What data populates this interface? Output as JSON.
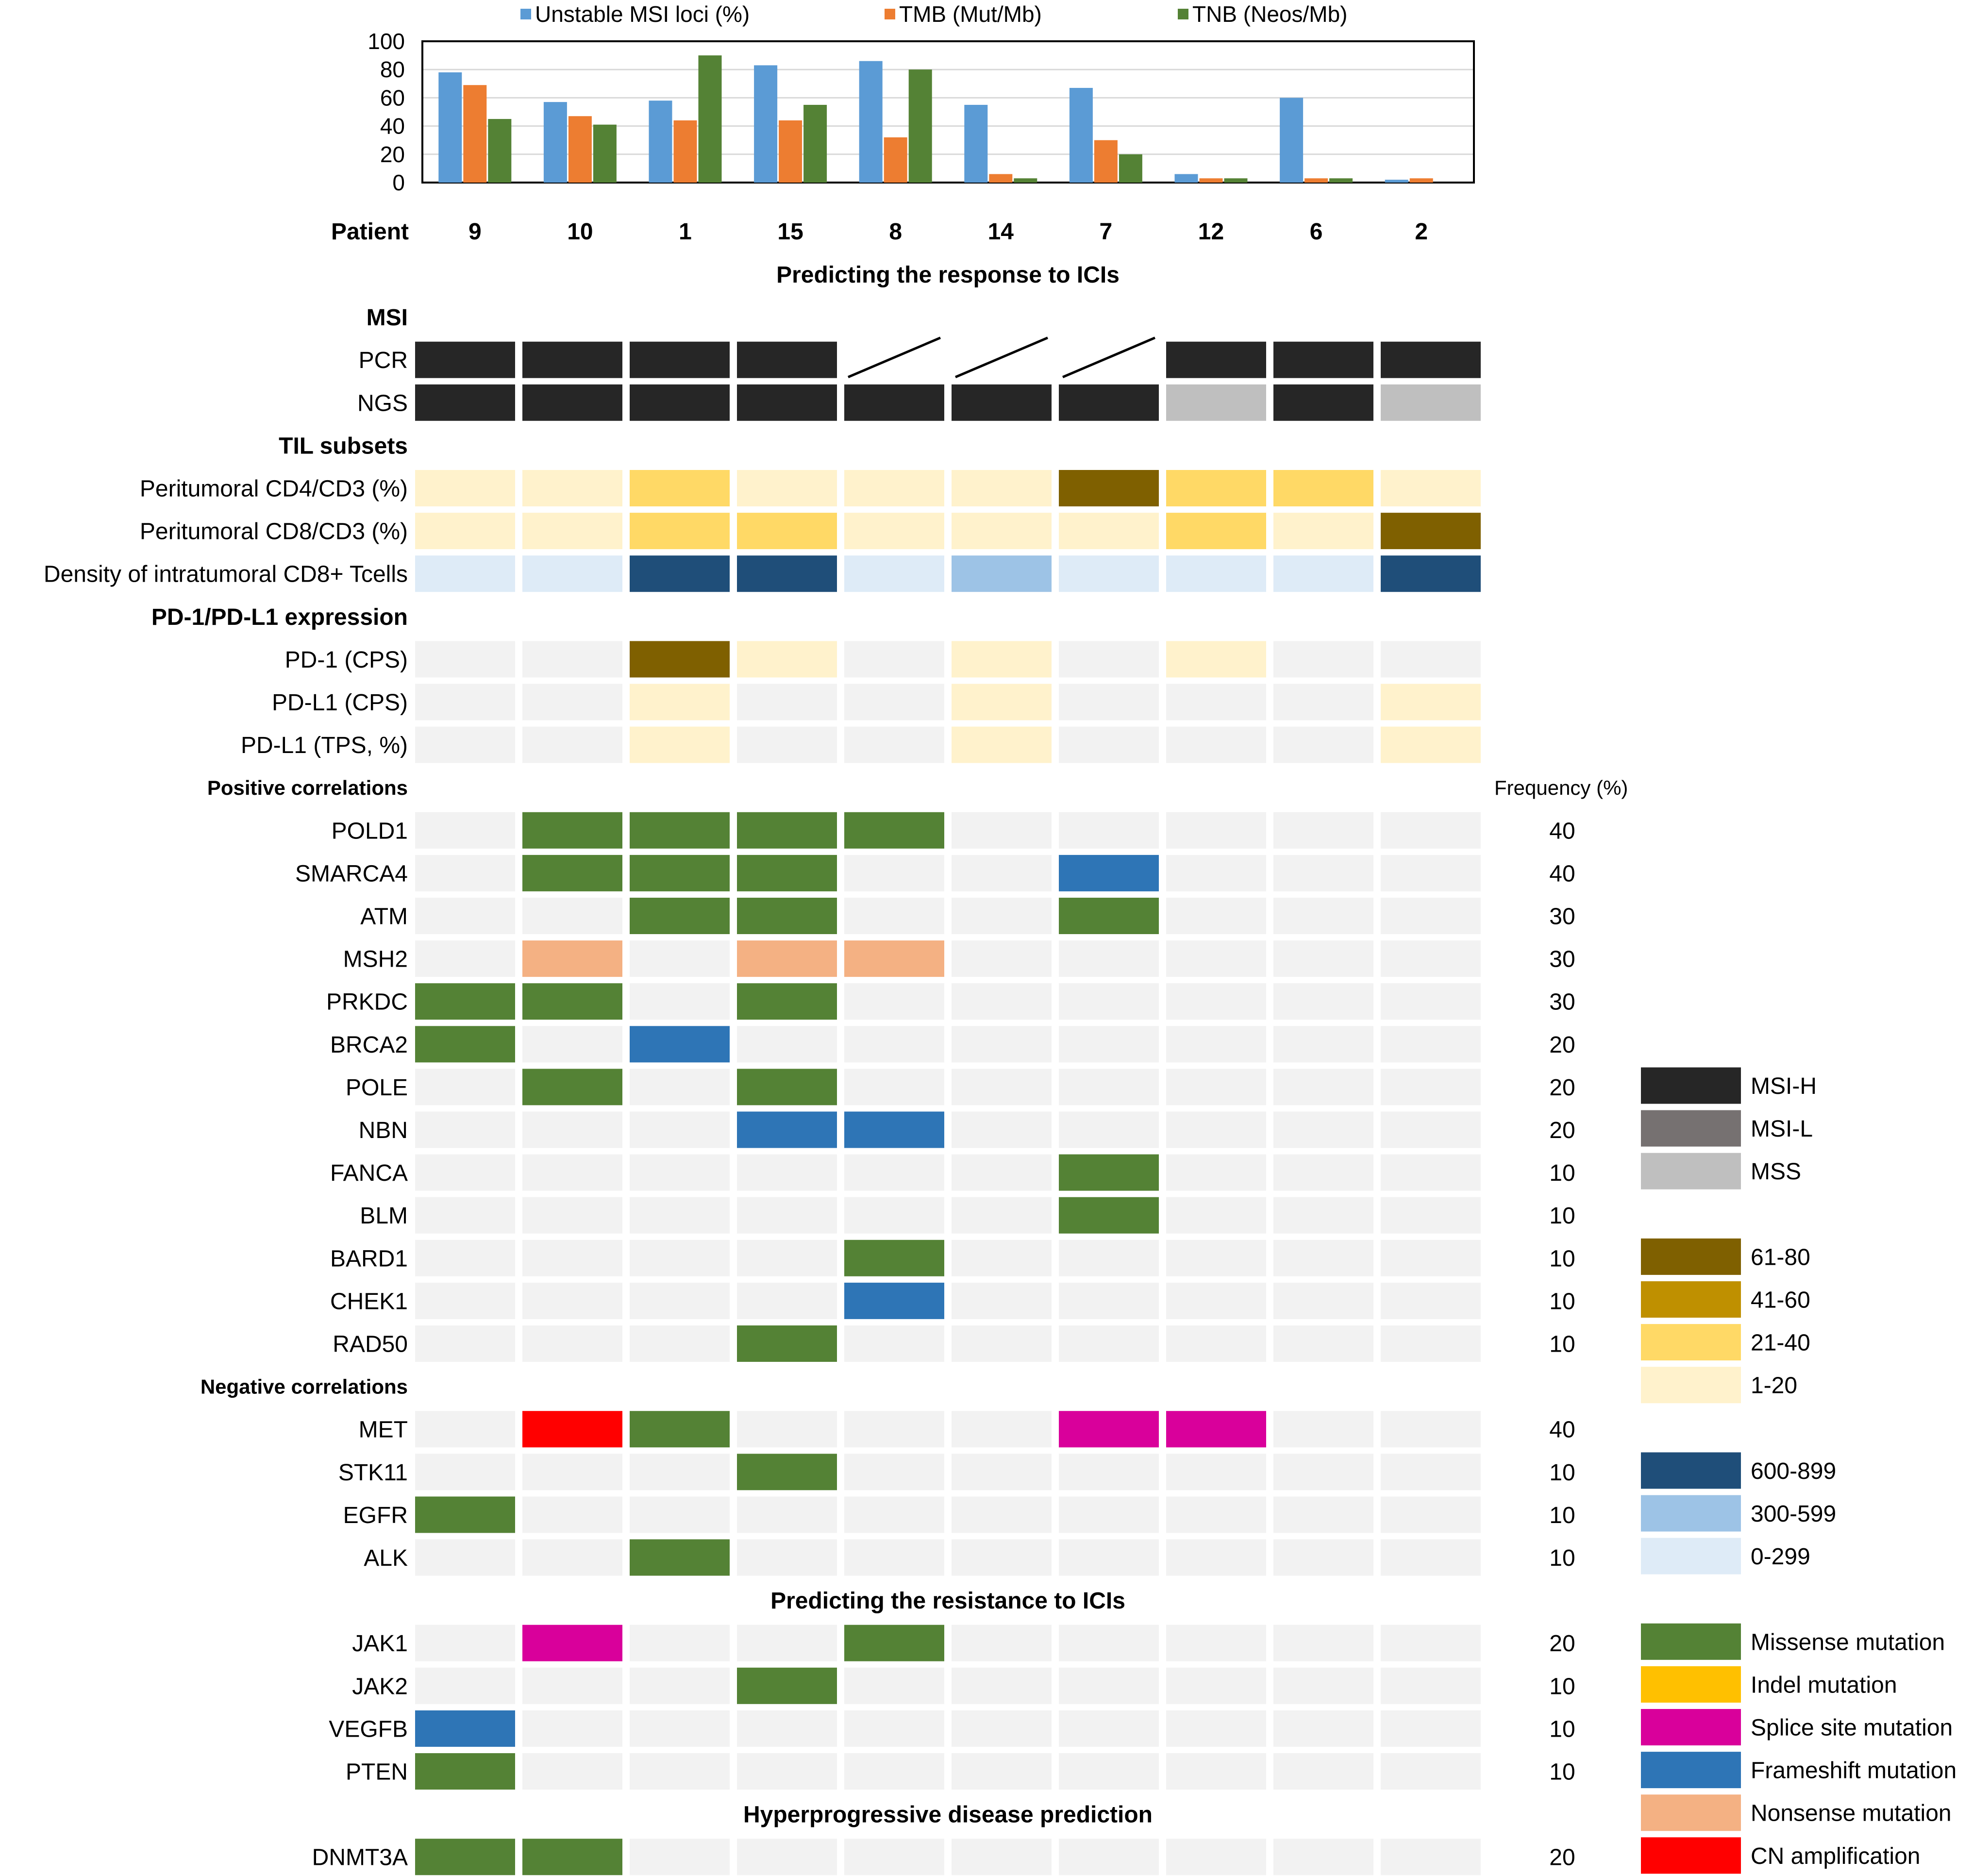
{
  "chart_data": {
    "type": "bar",
    "legend": [
      {
        "label": "Unstable MSI loci (%)",
        "color": "#5b9bd5"
      },
      {
        "label": "TMB (Mut/Mb)",
        "color": "#ed7d31"
      },
      {
        "label": "TNB (Neos/Mb)",
        "color": "#548235"
      }
    ],
    "ylim": [
      0,
      100
    ],
    "yticks": [
      "0",
      "20",
      "40",
      "60",
      "80",
      "100"
    ],
    "xlabel": "Patient",
    "categories": [
      "9",
      "10",
      "1",
      "15",
      "8",
      "14",
      "7",
      "12",
      "6",
      "2"
    ],
    "series": [
      {
        "name": "Unstable MSI loci (%)",
        "values": [
          78,
          57,
          58,
          83,
          86,
          55,
          67,
          6,
          60,
          2
        ]
      },
      {
        "name": "TMB (Mut/Mb)",
        "values": [
          69,
          47,
          44,
          44,
          32,
          6,
          30,
          3,
          3,
          3
        ]
      },
      {
        "name": "TNB (Neos/Mb)",
        "values": [
          45,
          41,
          90,
          55,
          80,
          3,
          20,
          3,
          3,
          0
        ]
      }
    ]
  },
  "colors": {
    "msi_h": "#262626",
    "msi_l": "#767171",
    "mss": "#bfbfbf",
    "y61_80": "#7f6000",
    "y41_60": "#bf9000",
    "y21_40": "#ffd966",
    "y1_20": "#fff2cc",
    "b600_899": "#1f4e79",
    "b300_599": "#9dc3e6",
    "b0_299": "#deebf7",
    "missense": "#548235",
    "indel": "#ffc000",
    "splice": "#d9009b",
    "frameshift": "#2e75b6",
    "nonsense": "#f4b183",
    "cnamp": "#ff0000",
    "empty": "#f2f2f2"
  },
  "heatmap": {
    "frequency_header": "Frequency (%)",
    "sections": [
      {
        "title": "Predicting the response to ICIs",
        "style": "title"
      },
      {
        "title": "MSI",
        "style": "bold"
      },
      {
        "label": "PCR",
        "cells": [
          "msi_h",
          "msi_h",
          "msi_h",
          "msi_h",
          "na",
          "na",
          "na",
          "msi_h",
          "msi_h",
          "msi_h"
        ]
      },
      {
        "label": "NGS",
        "cells": [
          "msi_h",
          "msi_h",
          "msi_h",
          "msi_h",
          "msi_h",
          "msi_h",
          "msi_h",
          "mss",
          "msi_h",
          "mss"
        ]
      },
      {
        "title": "TIL subsets",
        "style": "bold"
      },
      {
        "label": "Peritumoral CD4/CD3 (%)",
        "cells": [
          "y1_20",
          "y1_20",
          "y21_40",
          "y1_20",
          "y1_20",
          "y1_20",
          "y61_80",
          "y21_40",
          "y21_40",
          "y1_20"
        ]
      },
      {
        "label": "Peritumoral CD8/CD3 (%)",
        "cells": [
          "y1_20",
          "y1_20",
          "y21_40",
          "y21_40",
          "y1_20",
          "y1_20",
          "y1_20",
          "y21_40",
          "y1_20",
          "y61_80"
        ]
      },
      {
        "label": "Density of intratumoral CD8+ Tcells",
        "cells": [
          "b0_299",
          "b0_299",
          "b600_899",
          "b600_899",
          "b0_299",
          "b300_599",
          "b0_299",
          "b0_299",
          "b0_299",
          "b600_899"
        ]
      },
      {
        "title": "PD-1/PD-L1 expression",
        "style": "bold"
      },
      {
        "label": "PD-1 (CPS)",
        "cells": [
          "empty",
          "empty",
          "y61_80",
          "y1_20",
          "empty",
          "y1_20",
          "empty",
          "y1_20",
          "empty",
          "empty"
        ]
      },
      {
        "label": "PD-L1 (CPS)",
        "cells": [
          "empty",
          "empty",
          "y1_20",
          "empty",
          "empty",
          "y1_20",
          "empty",
          "empty",
          "empty",
          "y1_20"
        ]
      },
      {
        "label": "PD-L1 (TPS, %)",
        "cells": [
          "empty",
          "empty",
          "y1_20",
          "empty",
          "empty",
          "y1_20",
          "empty",
          "empty",
          "empty",
          "y1_20"
        ]
      },
      {
        "title": "Positive correlations",
        "style": "small"
      },
      {
        "label": "POLD1",
        "freq": "40",
        "cells": [
          "empty",
          "missense",
          "missense",
          "missense",
          "missense",
          "empty",
          "empty",
          "empty",
          "empty",
          "empty"
        ]
      },
      {
        "label": "SMARCA4",
        "freq": "40",
        "cells": [
          "empty",
          "missense",
          "missense",
          "missense",
          "empty",
          "empty",
          "frameshift",
          "empty",
          "empty",
          "empty"
        ]
      },
      {
        "label": "ATM",
        "freq": "30",
        "cells": [
          "empty",
          "empty",
          "missense",
          "missense",
          "empty",
          "empty",
          "missense",
          "empty",
          "empty",
          "empty"
        ]
      },
      {
        "label": "MSH2",
        "freq": "30",
        "cells": [
          "empty",
          "nonsense",
          "empty",
          "nonsense",
          "nonsense",
          "empty",
          "empty",
          "empty",
          "empty",
          "empty"
        ]
      },
      {
        "label": "PRKDC",
        "freq": "30",
        "cells": [
          "missense",
          "missense",
          "empty",
          "missense",
          "empty",
          "empty",
          "empty",
          "empty",
          "empty",
          "empty"
        ]
      },
      {
        "label": "BRCA2",
        "freq": "20",
        "cells": [
          "missense",
          "empty",
          "frameshift",
          "empty",
          "empty",
          "empty",
          "empty",
          "empty",
          "empty",
          "empty"
        ]
      },
      {
        "label": "POLE",
        "freq": "20",
        "cells": [
          "empty",
          "missense",
          "empty",
          "missense",
          "empty",
          "empty",
          "empty",
          "empty",
          "empty",
          "empty"
        ]
      },
      {
        "label": "NBN",
        "freq": "20",
        "cells": [
          "empty",
          "empty",
          "empty",
          "frameshift",
          "frameshift",
          "empty",
          "empty",
          "empty",
          "empty",
          "empty"
        ]
      },
      {
        "label": "FANCA",
        "freq": "10",
        "cells": [
          "empty",
          "empty",
          "empty",
          "empty",
          "empty",
          "empty",
          "missense",
          "empty",
          "empty",
          "empty"
        ]
      },
      {
        "label": "BLM",
        "freq": "10",
        "cells": [
          "empty",
          "empty",
          "empty",
          "empty",
          "empty",
          "empty",
          "missense",
          "empty",
          "empty",
          "empty"
        ]
      },
      {
        "label": "BARD1",
        "freq": "10",
        "cells": [
          "empty",
          "empty",
          "empty",
          "empty",
          "missense",
          "empty",
          "empty",
          "empty",
          "empty",
          "empty"
        ]
      },
      {
        "label": "CHEK1",
        "freq": "10",
        "cells": [
          "empty",
          "empty",
          "empty",
          "empty",
          "frameshift",
          "empty",
          "empty",
          "empty",
          "empty",
          "empty"
        ]
      },
      {
        "label": "RAD50",
        "freq": "10",
        "cells": [
          "empty",
          "empty",
          "empty",
          "missense",
          "empty",
          "empty",
          "empty",
          "empty",
          "empty",
          "empty"
        ]
      },
      {
        "title": "Negative correlations",
        "style": "small"
      },
      {
        "label": "MET",
        "freq": "40",
        "cells": [
          "empty",
          "cnamp",
          "missense",
          "empty",
          "empty",
          "empty",
          "splice",
          "splice",
          "empty",
          "empty"
        ]
      },
      {
        "label": "STK11",
        "freq": "10",
        "cells": [
          "empty",
          "empty",
          "empty",
          "missense",
          "empty",
          "empty",
          "empty",
          "empty",
          "empty",
          "empty"
        ]
      },
      {
        "label": "EGFR",
        "freq": "10",
        "cells": [
          "missense",
          "empty",
          "empty",
          "empty",
          "empty",
          "empty",
          "empty",
          "empty",
          "empty",
          "empty"
        ]
      },
      {
        "label": "ALK",
        "freq": "10",
        "cells": [
          "empty",
          "empty",
          "missense",
          "empty",
          "empty",
          "empty",
          "empty",
          "empty",
          "empty",
          "empty"
        ]
      },
      {
        "title": "Predicting the resistance to ICIs",
        "style": "title"
      },
      {
        "label": "JAK1",
        "freq": "20",
        "cells": [
          "empty",
          "splice",
          "empty",
          "empty",
          "missense",
          "empty",
          "empty",
          "empty",
          "empty",
          "empty"
        ]
      },
      {
        "label": "JAK2",
        "freq": "10",
        "cells": [
          "empty",
          "empty",
          "empty",
          "missense",
          "empty",
          "empty",
          "empty",
          "empty",
          "empty",
          "empty"
        ]
      },
      {
        "label": "VEGFB",
        "freq": "10",
        "cells": [
          "frameshift",
          "empty",
          "empty",
          "empty",
          "empty",
          "empty",
          "empty",
          "empty",
          "empty",
          "empty"
        ]
      },
      {
        "label": "PTEN",
        "freq": "10",
        "cells": [
          "missense",
          "empty",
          "empty",
          "empty",
          "empty",
          "empty",
          "empty",
          "empty",
          "empty",
          "empty"
        ]
      },
      {
        "title": "Hyperprogressive disease prediction",
        "style": "title"
      },
      {
        "label": "DNMT3A",
        "freq": "20",
        "cells": [
          "missense",
          "missense",
          "empty",
          "empty",
          "empty",
          "empty",
          "empty",
          "empty",
          "empty",
          "empty"
        ]
      }
    ]
  },
  "legend_keys": [
    {
      "label": "MSI-H",
      "color": "msi_h"
    },
    {
      "label": "MSI-L",
      "color": "msi_l"
    },
    {
      "label": "MSS",
      "color": "mss"
    },
    {
      "gap": true
    },
    {
      "label": "61-80",
      "color": "y61_80"
    },
    {
      "label": "41-60",
      "color": "y41_60"
    },
    {
      "label": "21-40",
      "color": "y21_40"
    },
    {
      "label": "1-20",
      "color": "y1_20"
    },
    {
      "gap": true
    },
    {
      "label": "600-899",
      "color": "b600_899"
    },
    {
      "label": "300-599",
      "color": "b300_599"
    },
    {
      "label": "0-299",
      "color": "b0_299"
    },
    {
      "gap": true
    },
    {
      "label": "Missense mutation",
      "color": "missense"
    },
    {
      "label": "Indel mutation",
      "color": "indel"
    },
    {
      "label": "Splice site mutation",
      "color": "splice"
    },
    {
      "label": "Frameshift mutation",
      "color": "frameshift"
    },
    {
      "label": "Nonsense mutation",
      "color": "nonsense"
    },
    {
      "label": "CN amplification",
      "color": "cnamp"
    }
  ]
}
